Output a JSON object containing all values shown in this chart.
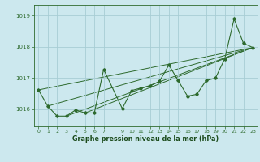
{
  "background_color": "#cce8ee",
  "grid_color": "#a8cdd4",
  "line_color": "#2d6a2d",
  "xlabel": "Graphe pression niveau de la mer (hPa)",
  "xlabel_color": "#1a4a1a",
  "yticks": [
    1016,
    1017,
    1018,
    1019
  ],
  "xticks": [
    0,
    1,
    2,
    3,
    4,
    5,
    6,
    7,
    9,
    10,
    11,
    12,
    13,
    14,
    15,
    16,
    17,
    18,
    19,
    20,
    21,
    22,
    23
  ],
  "xlim": [
    -0.5,
    23.5
  ],
  "ylim": [
    1015.45,
    1019.35
  ],
  "series": [
    [
      0,
      1016.62
    ],
    [
      1,
      1016.1
    ],
    [
      2,
      1015.78
    ],
    [
      3,
      1015.78
    ],
    [
      4,
      1015.98
    ],
    [
      5,
      1015.88
    ],
    [
      6,
      1015.88
    ],
    [
      7,
      1017.28
    ],
    [
      9,
      1016.02
    ],
    [
      10,
      1016.6
    ],
    [
      11,
      1016.68
    ],
    [
      12,
      1016.75
    ],
    [
      13,
      1016.9
    ],
    [
      14,
      1017.42
    ],
    [
      15,
      1016.92
    ],
    [
      16,
      1016.42
    ],
    [
      17,
      1016.48
    ],
    [
      18,
      1016.92
    ],
    [
      19,
      1017.0
    ],
    [
      20,
      1017.62
    ],
    [
      21,
      1018.9
    ],
    [
      22,
      1018.12
    ],
    [
      23,
      1017.98
    ]
  ],
  "trend_lines": [
    {
      "x": [
        0,
        23
      ],
      "y": [
        1016.62,
        1017.98
      ]
    },
    {
      "x": [
        1,
        23
      ],
      "y": [
        1016.1,
        1017.98
      ]
    },
    {
      "x": [
        3,
        23
      ],
      "y": [
        1015.78,
        1017.98
      ]
    },
    {
      "x": [
        5,
        23
      ],
      "y": [
        1015.88,
        1017.98
      ]
    }
  ],
  "figsize": [
    3.2,
    2.0
  ],
  "dpi": 100
}
